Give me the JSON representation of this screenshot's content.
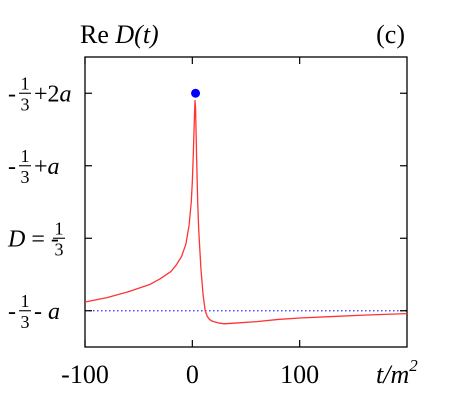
{
  "chart_data": {
    "type": "line",
    "title": "Re D(t)",
    "title_parts": {
      "re": "Re ",
      "func": "D(t)"
    },
    "panel_label": "(c)",
    "xlabel": "t/m²",
    "xlabel_parts": {
      "base": "t/m",
      "sup": "2"
    },
    "ylabel": "",
    "xlim": [
      -100,
      200
    ],
    "x_ticks": [
      -100,
      0,
      100
    ],
    "y_param_a": 1,
    "ylim_in_a": [
      -1.5,
      2.5
    ],
    "y_ticks": [
      {
        "value_in_a": -1,
        "text": "-1/3 - a",
        "pre": "-",
        "num": "1",
        "den": "3",
        "post": "- a"
      },
      {
        "value_in_a": 0,
        "text": "D = -1/3",
        "prefix": "D = -",
        "num": "1",
        "den": "3",
        "post": ""
      },
      {
        "value_in_a": 1,
        "text": "-1/3 + a",
        "pre": "-",
        "num": "1",
        "den": "3",
        "post": "+a"
      },
      {
        "value_in_a": 2,
        "text": "-1/3 + 2a",
        "pre": "-",
        "num": "1",
        "den": "3",
        "post": "+2a"
      }
    ],
    "grid": false,
    "series": [
      {
        "color": "#ff3333",
        "x": [
          -100,
          -80,
          -60,
          -40,
          -30,
          -20,
          -15,
          -10,
          -6,
          -3,
          -1,
          0,
          1,
          2,
          2.5,
          3,
          4,
          5,
          6,
          8,
          10,
          12,
          14,
          16,
          18,
          20,
          25,
          30,
          40,
          60,
          80,
          100,
          130,
          160,
          200
        ],
        "y": [
          -0.88,
          -0.82,
          -0.74,
          -0.64,
          -0.56,
          -0.46,
          -0.37,
          -0.25,
          -0.08,
          0.18,
          0.5,
          0.78,
          1.2,
          1.7,
          1.9,
          1.8,
          1.1,
          0.5,
          0.1,
          -0.42,
          -0.78,
          -1.0,
          -1.08,
          -1.12,
          -1.14,
          -1.15,
          -1.17,
          -1.18,
          -1.17,
          -1.15,
          -1.12,
          -1.1,
          -1.08,
          -1.06,
          -1.04
        ]
      }
    ],
    "reference_line": {
      "y_in_a": -1,
      "color": "#3333ff",
      "style": "dotted"
    },
    "marker": {
      "x": 3,
      "y_in_a": 2,
      "color": "#0000ff"
    }
  }
}
